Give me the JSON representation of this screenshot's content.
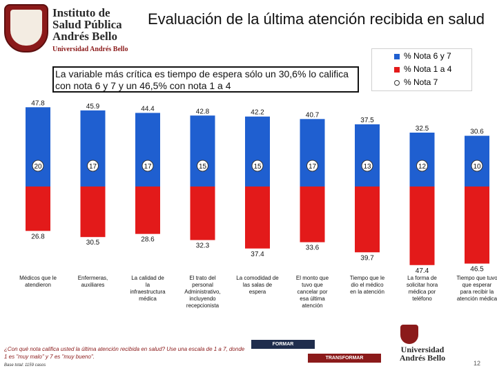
{
  "logo": {
    "line1": "Instituto de",
    "line2": "Salud Pública",
    "line3": "Andrés Bello",
    "sub": "Universidad Andrés Bello"
  },
  "title": "Evaluación de la última atención recibida en salud",
  "highlight_text": "La variable más crítica es tiempo de espera sólo un 30,6% lo califica con nota 6 y 7 y un 46,5% con nota 1 a 4",
  "legend": [
    {
      "label": "% Nota 6 y 7",
      "color": "#1f5fd0"
    },
    {
      "label": "% Nota 1 a 4",
      "color": "#e31a1a"
    },
    {
      "label": "% Nota 7",
      "color": "#ffffff"
    }
  ],
  "chart_data": {
    "type": "bar",
    "categories": [
      "Médicos que le atendieron",
      "Enfermeras, auxiliares",
      "La calidad de la infraestructura médica",
      "El trato del personal Administrativo, incluyendo recepcionista",
      "La comodidad de las salas de espera",
      "El monto que tuvo que cancelar por esa última atención",
      "Tiempo que le dio el médico en la atención",
      "La forma de solicitar hora médica por teléfono",
      "Tiempo que tuvo que esperar para recibir la atención médica"
    ],
    "series": [
      {
        "name": "% Nota 6 y 7",
        "values": [
          47.8,
          45.9,
          44.4,
          42.8,
          42.2,
          40.7,
          37.5,
          32.5,
          30.6
        ],
        "color": "#1f5fd0"
      },
      {
        "name": "% Nota 1 a 4",
        "values": [
          26.8,
          30.5,
          28.6,
          32.3,
          37.4,
          33.6,
          39.7,
          47.4,
          46.5
        ],
        "color": "#e31a1a"
      },
      {
        "name": "% Nota 7",
        "values": [
          20,
          17,
          17,
          15,
          15,
          17,
          13,
          12,
          10
        ],
        "color": "#ffffff"
      }
    ]
  },
  "footer": {
    "question": "¿Con qué nota califica usted la última atención recibida en salud? Use una escala de 1 a 7, donde 1 es \"muy malo\" y 7 es \"muy bueno\".",
    "note": "Base total: 1159 casos"
  },
  "banners": {
    "top": "FORMAR",
    "bottom": "TRANSFORMAR"
  },
  "brand": {
    "line1": "Universidad",
    "line2": "Andrés Bello"
  },
  "page_number": "12"
}
